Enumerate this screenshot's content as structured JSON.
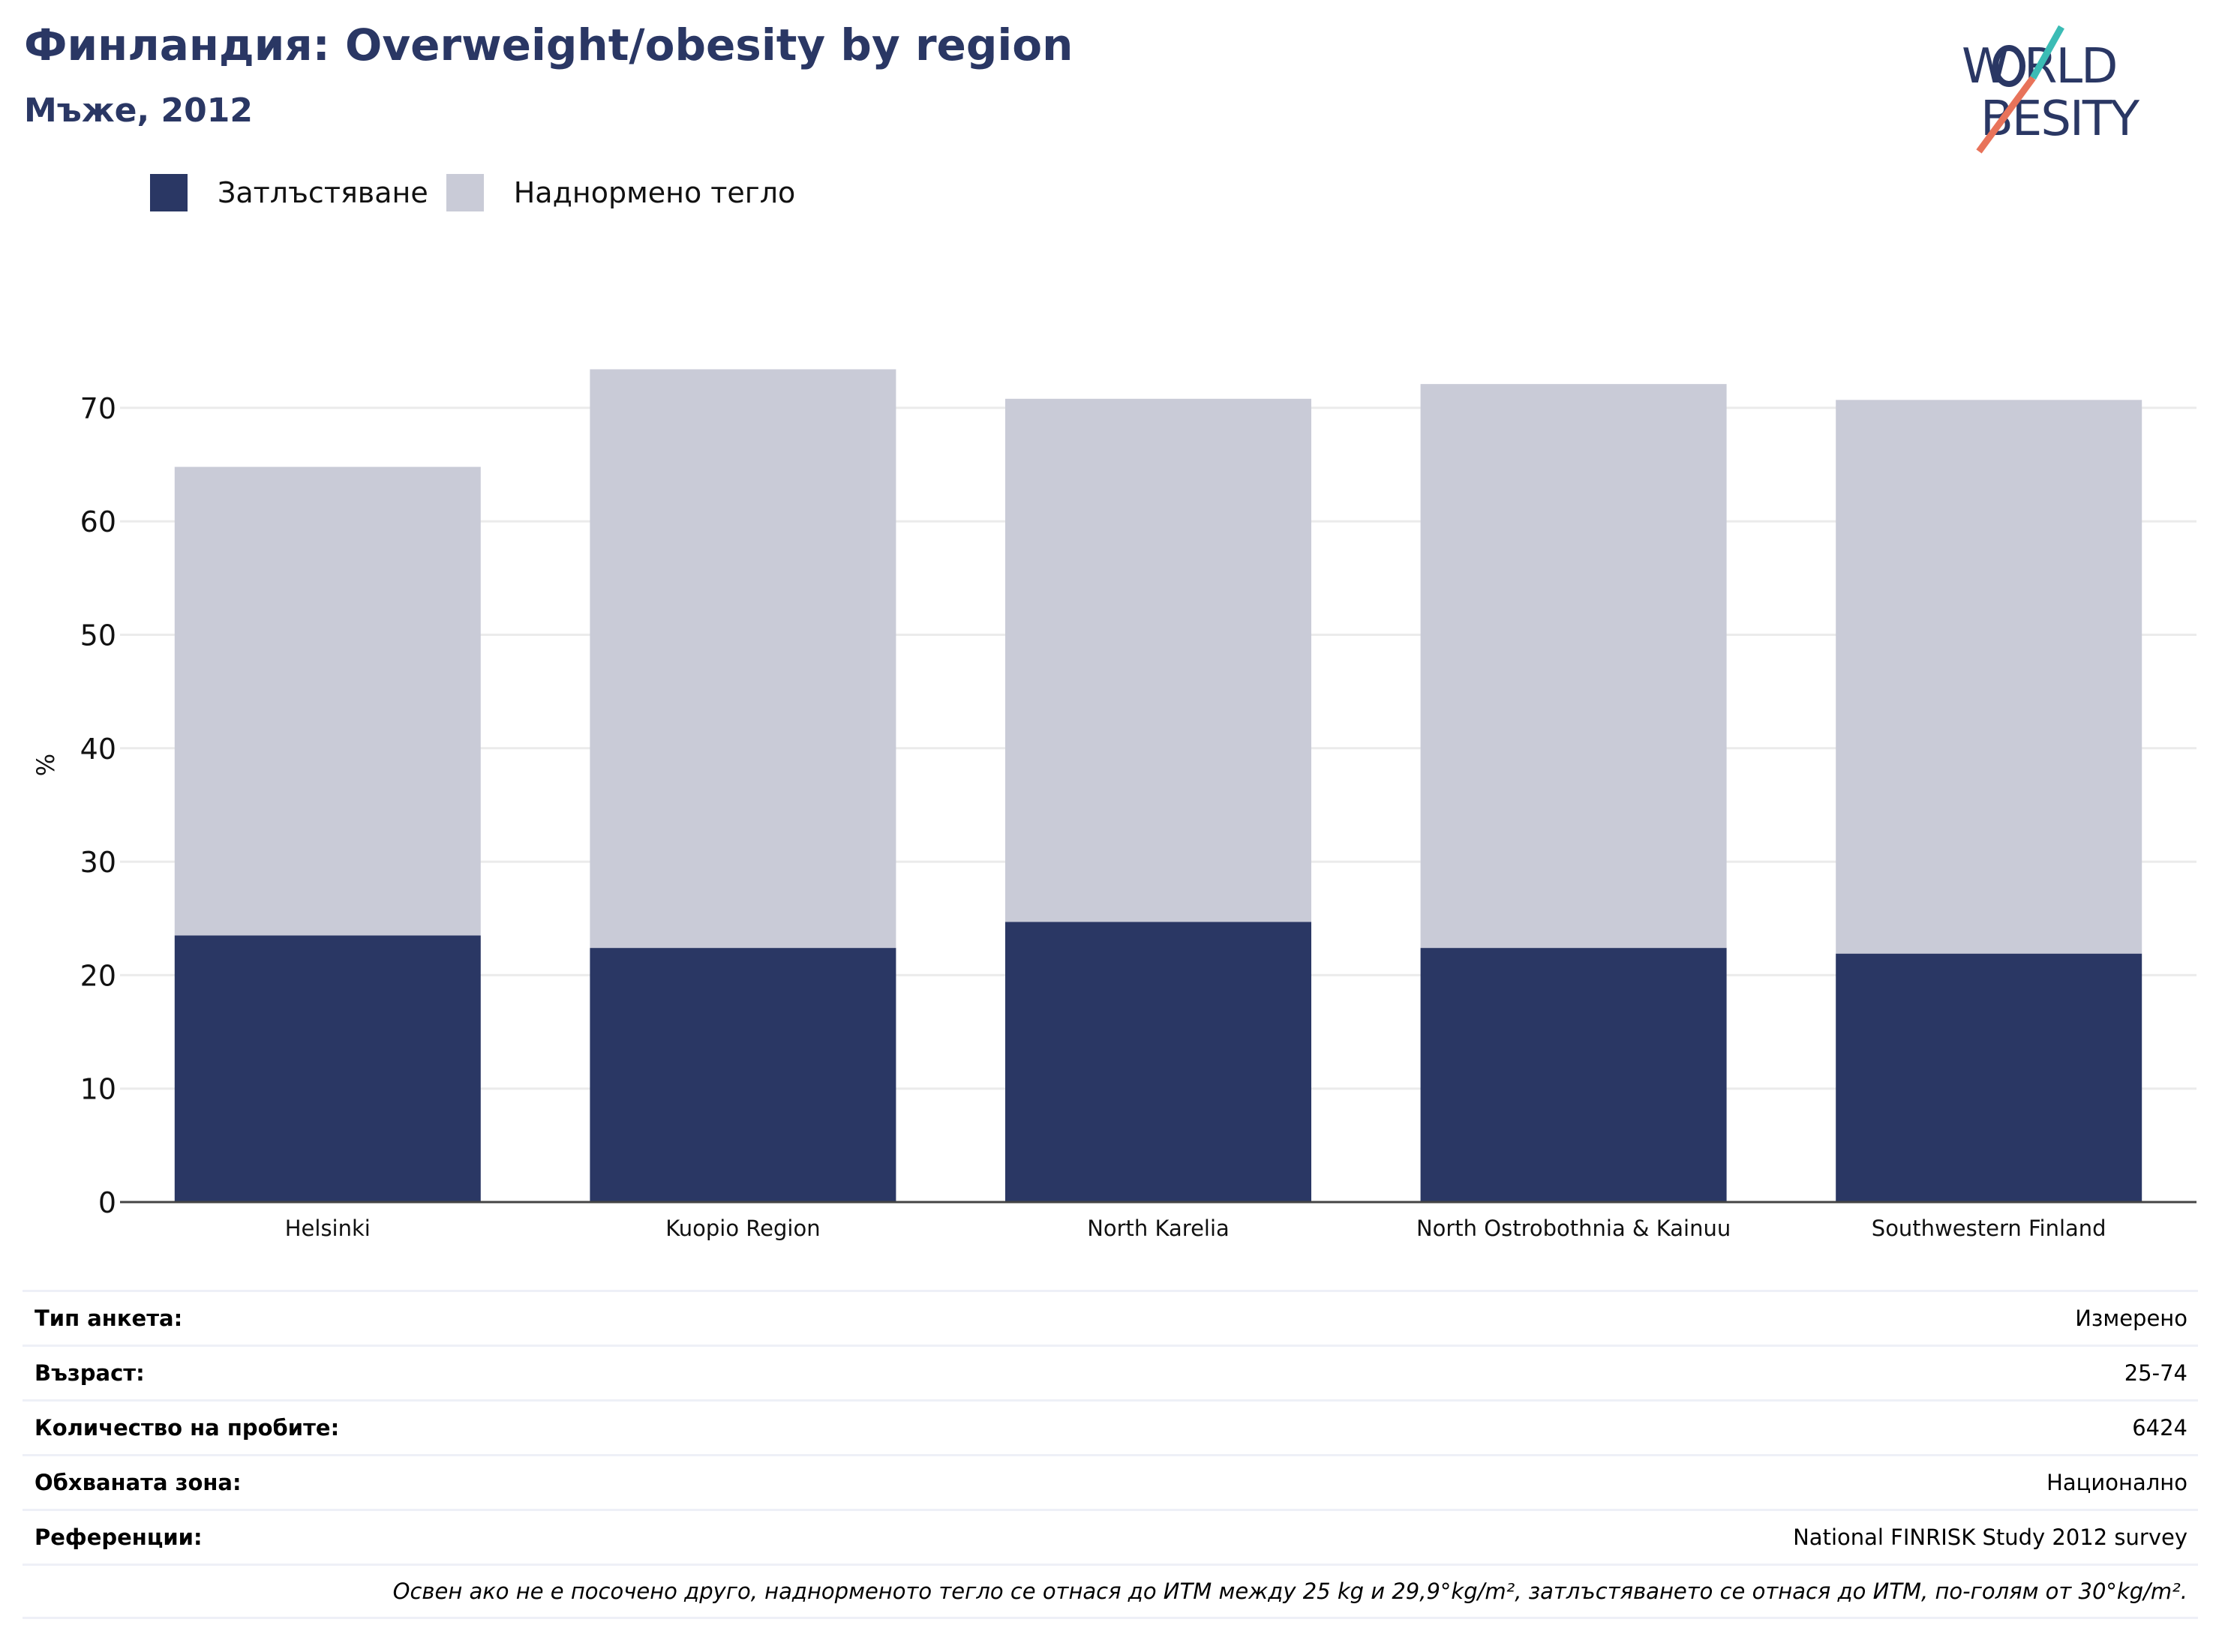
{
  "title": "Финландия: Overweight/obesity by region",
  "subtitle": "Мъже, 2012",
  "logo": {
    "line1": "WORLD",
    "line2": "OBESITY"
  },
  "legend": [
    {
      "label": "Затлъстяване",
      "color": "#2a3764"
    },
    {
      "label": "Наднормено тегло",
      "color": "#c9cbd7"
    }
  ],
  "chart_data": {
    "type": "bar",
    "stacked": true,
    "categories": [
      "Helsinki",
      "Kuopio Region",
      "North Karelia",
      "North Ostrobothnia & Kainuu",
      "Southwestern Finland"
    ],
    "series": [
      {
        "name": "Затлъстяване",
        "values": [
          23.5,
          22.4,
          24.7,
          22.4,
          21.9
        ],
        "color": "#2a3764"
      },
      {
        "name": "Наднормено тегло",
        "values": [
          41.3,
          51.0,
          46.1,
          49.7,
          48.8
        ],
        "color": "#c9cbd7"
      }
    ],
    "ylabel": "%",
    "xlabel": "",
    "ylim": [
      0,
      75
    ],
    "yticks": [
      0,
      10,
      20,
      30,
      40,
      50,
      60,
      70
    ],
    "grid": true
  },
  "info": [
    {
      "key": "Тип анкета:",
      "value": "Измерено"
    },
    {
      "key": "Възраст:",
      "value": "25-74"
    },
    {
      "key": "Количество на пробите:",
      "value": "6424"
    },
    {
      "key": "Обхваната зона:",
      "value": "Национално"
    },
    {
      "key": "Референции:",
      "value": "National FINRISK Study 2012 survey"
    }
  ],
  "note": "Освен ако не е посочено друго, наднорменото тегло се отнася до ИТМ между 25 kg и 29,9°kg/m², затлъстяването се отнася до ИТМ, по-голям от 30°kg/m²."
}
